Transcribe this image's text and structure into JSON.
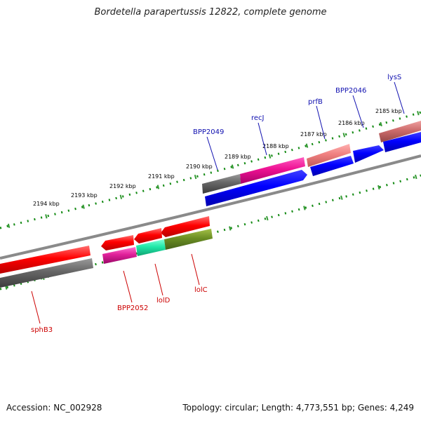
{
  "title": "Bordetella parapertussis 12822, complete genome",
  "footer": {
    "accession": "Accession: NC_002928",
    "summary": "Topology: circular; Length: 4,773,551 bp; Genes: 4,249"
  },
  "scale_labels": [
    "2185 kbp",
    "2186 kbp",
    "2187 kbp",
    "2188 kbp",
    "2189 kbp",
    "2190 kbp",
    "2191 kbp",
    "2192 kbp",
    "2193 kbp",
    "2194 kbp"
  ],
  "gene_labels": {
    "forward": [
      "lysS",
      "BPP2046",
      "prfB",
      "recJ",
      "BPP2049"
    ],
    "reverse": [
      "BPP2052",
      "lolD",
      "lolC",
      "sphB3"
    ]
  },
  "colors": {
    "forward_label": "#1010b0",
    "reverse_label": "#cc0000",
    "tick": "#138a13",
    "backbone": "#8a8a8a"
  }
}
